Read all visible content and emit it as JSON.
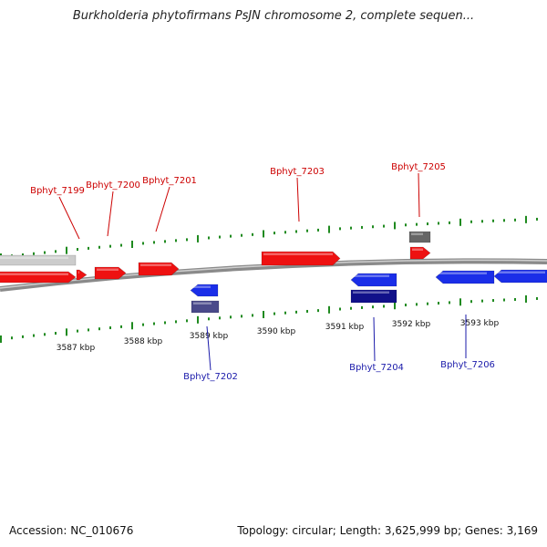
{
  "title": "Burkholderia phytofirmans PsJN chromosome 2, complete sequen...",
  "footer": {
    "accession": "Accession: NC_010676",
    "summary": "Topology: circular; Length: 3,625,999 bp; Genes: 3,169"
  },
  "colors": {
    "forward_gene": "#ee1111",
    "reverse_gene": "#1a2ee8",
    "forward_label": "#cc0000",
    "reverse_label": "#1a1aaa",
    "tick": "#1f8a1f",
    "backbone": "#8a8a8a",
    "forward_pseudo": "#cccccc",
    "dark_forward_box": "#666666",
    "dark_reverse_box": "#11118a",
    "mid_reverse_box": "#4a4a8a"
  },
  "scale": {
    "unit": "kbp",
    "labels": [
      "3587 kbp",
      "3588 kbp",
      "3589 kbp",
      "3590 kbp",
      "3591 kbp",
      "3592 kbp",
      "3593 kbp"
    ]
  },
  "genes": [
    {
      "name": "Bphyt_7199",
      "strand": "+"
    },
    {
      "name": "Bphyt_7200",
      "strand": "+"
    },
    {
      "name": "Bphyt_7201",
      "strand": "+"
    },
    {
      "name": "Bphyt_7202",
      "strand": "-"
    },
    {
      "name": "Bphyt_7203",
      "strand": "+"
    },
    {
      "name": "Bphyt_7204",
      "strand": "-"
    },
    {
      "name": "Bphyt_7205",
      "strand": "+"
    },
    {
      "name": "Bphyt_7206",
      "strand": "-"
    }
  ]
}
